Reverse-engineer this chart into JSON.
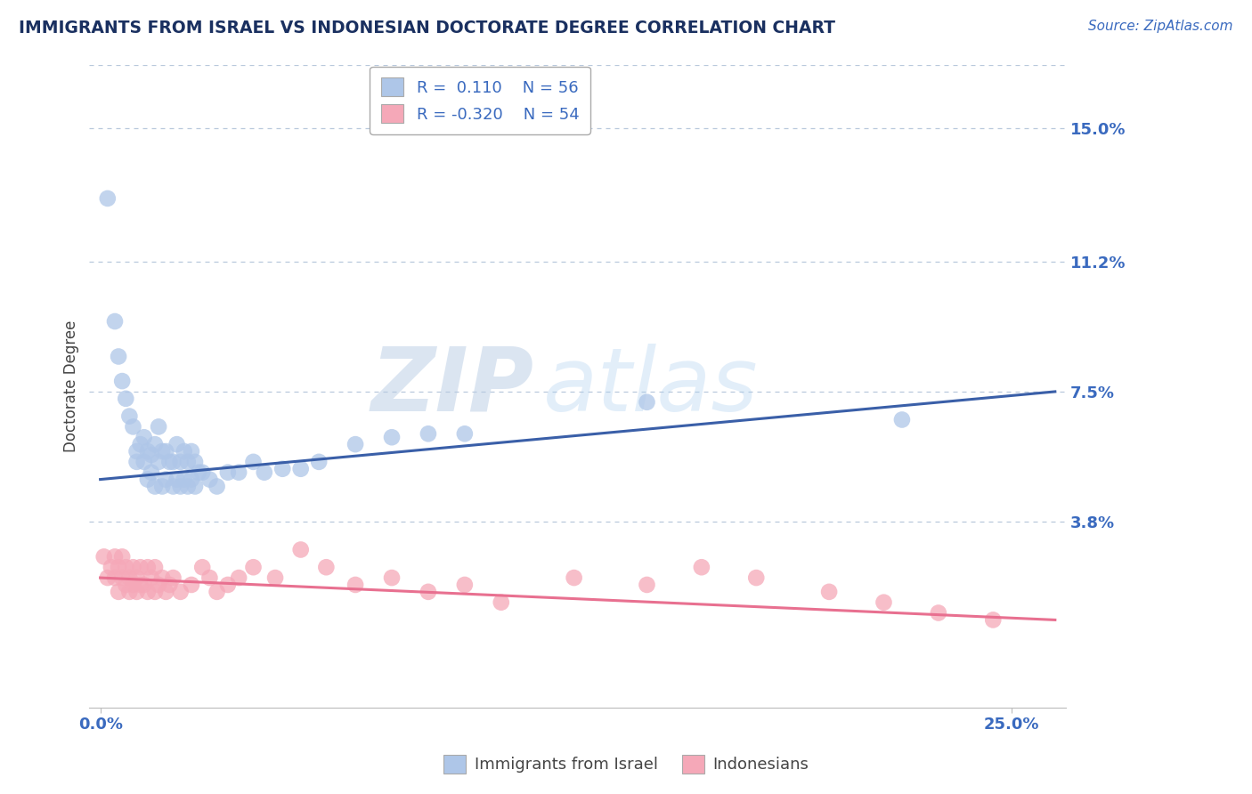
{
  "title": "IMMIGRANTS FROM ISRAEL VS INDONESIAN DOCTORATE DEGREE CORRELATION CHART",
  "source": "Source: ZipAtlas.com",
  "ylabel": "Doctorate Degree",
  "y_tick_labels": [
    "3.8%",
    "7.5%",
    "11.2%",
    "15.0%"
  ],
  "y_ticks": [
    0.038,
    0.075,
    0.112,
    0.15
  ],
  "xlim": [
    -0.003,
    0.265
  ],
  "ylim": [
    -0.015,
    0.168
  ],
  "israel_color": "#aec6e8",
  "indonesia_color": "#f5a8b8",
  "israel_line_color": "#3a5fa8",
  "indonesia_line_color": "#e87090",
  "grid_color": "#b8c8dc",
  "title_color": "#1a3060",
  "axis_label_color": "#444444",
  "tick_label_color": "#3a6abf",
  "source_color": "#3a6abf",
  "background_color": "#ffffff",
  "watermark_zip": "ZIP",
  "watermark_atlas": "atlas",
  "israel_line_start_y": 0.05,
  "israel_line_end_y": 0.075,
  "indonesia_line_start_y": 0.022,
  "indonesia_line_end_y": 0.01,
  "israel_x": [
    0.002,
    0.004,
    0.005,
    0.006,
    0.007,
    0.008,
    0.009,
    0.01,
    0.01,
    0.011,
    0.012,
    0.012,
    0.013,
    0.013,
    0.014,
    0.014,
    0.015,
    0.015,
    0.016,
    0.016,
    0.017,
    0.017,
    0.018,
    0.018,
    0.019,
    0.02,
    0.02,
    0.021,
    0.021,
    0.022,
    0.022,
    0.023,
    0.023,
    0.024,
    0.024,
    0.025,
    0.025,
    0.026,
    0.026,
    0.027,
    0.028,
    0.03,
    0.032,
    0.035,
    0.038,
    0.042,
    0.045,
    0.05,
    0.055,
    0.06,
    0.07,
    0.08,
    0.09,
    0.1,
    0.15,
    0.22
  ],
  "israel_y": [
    0.13,
    0.095,
    0.085,
    0.078,
    0.073,
    0.068,
    0.065,
    0.055,
    0.058,
    0.06,
    0.062,
    0.055,
    0.05,
    0.058,
    0.052,
    0.057,
    0.048,
    0.06,
    0.055,
    0.065,
    0.048,
    0.058,
    0.05,
    0.058,
    0.055,
    0.048,
    0.055,
    0.05,
    0.06,
    0.048,
    0.055,
    0.05,
    0.058,
    0.048,
    0.055,
    0.05,
    0.058,
    0.048,
    0.055,
    0.052,
    0.052,
    0.05,
    0.048,
    0.052,
    0.052,
    0.055,
    0.052,
    0.053,
    0.053,
    0.055,
    0.06,
    0.062,
    0.063,
    0.063,
    0.072,
    0.067
  ],
  "indonesia_x": [
    0.001,
    0.002,
    0.003,
    0.004,
    0.004,
    0.005,
    0.005,
    0.006,
    0.006,
    0.007,
    0.007,
    0.008,
    0.008,
    0.009,
    0.009,
    0.01,
    0.01,
    0.011,
    0.011,
    0.012,
    0.013,
    0.013,
    0.014,
    0.015,
    0.015,
    0.016,
    0.017,
    0.018,
    0.019,
    0.02,
    0.022,
    0.025,
    0.028,
    0.03,
    0.032,
    0.035,
    0.038,
    0.042,
    0.048,
    0.055,
    0.062,
    0.07,
    0.08,
    0.09,
    0.1,
    0.11,
    0.13,
    0.15,
    0.165,
    0.18,
    0.2,
    0.215,
    0.23,
    0.245
  ],
  "indonesia_y": [
    0.028,
    0.022,
    0.025,
    0.028,
    0.022,
    0.025,
    0.018,
    0.022,
    0.028,
    0.02,
    0.025,
    0.022,
    0.018,
    0.02,
    0.025,
    0.022,
    0.018,
    0.02,
    0.025,
    0.02,
    0.025,
    0.018,
    0.022,
    0.018,
    0.025,
    0.02,
    0.022,
    0.018,
    0.02,
    0.022,
    0.018,
    0.02,
    0.025,
    0.022,
    0.018,
    0.02,
    0.022,
    0.025,
    0.022,
    0.03,
    0.025,
    0.02,
    0.022,
    0.018,
    0.02,
    0.015,
    0.022,
    0.02,
    0.025,
    0.022,
    0.018,
    0.015,
    0.012,
    0.01
  ]
}
